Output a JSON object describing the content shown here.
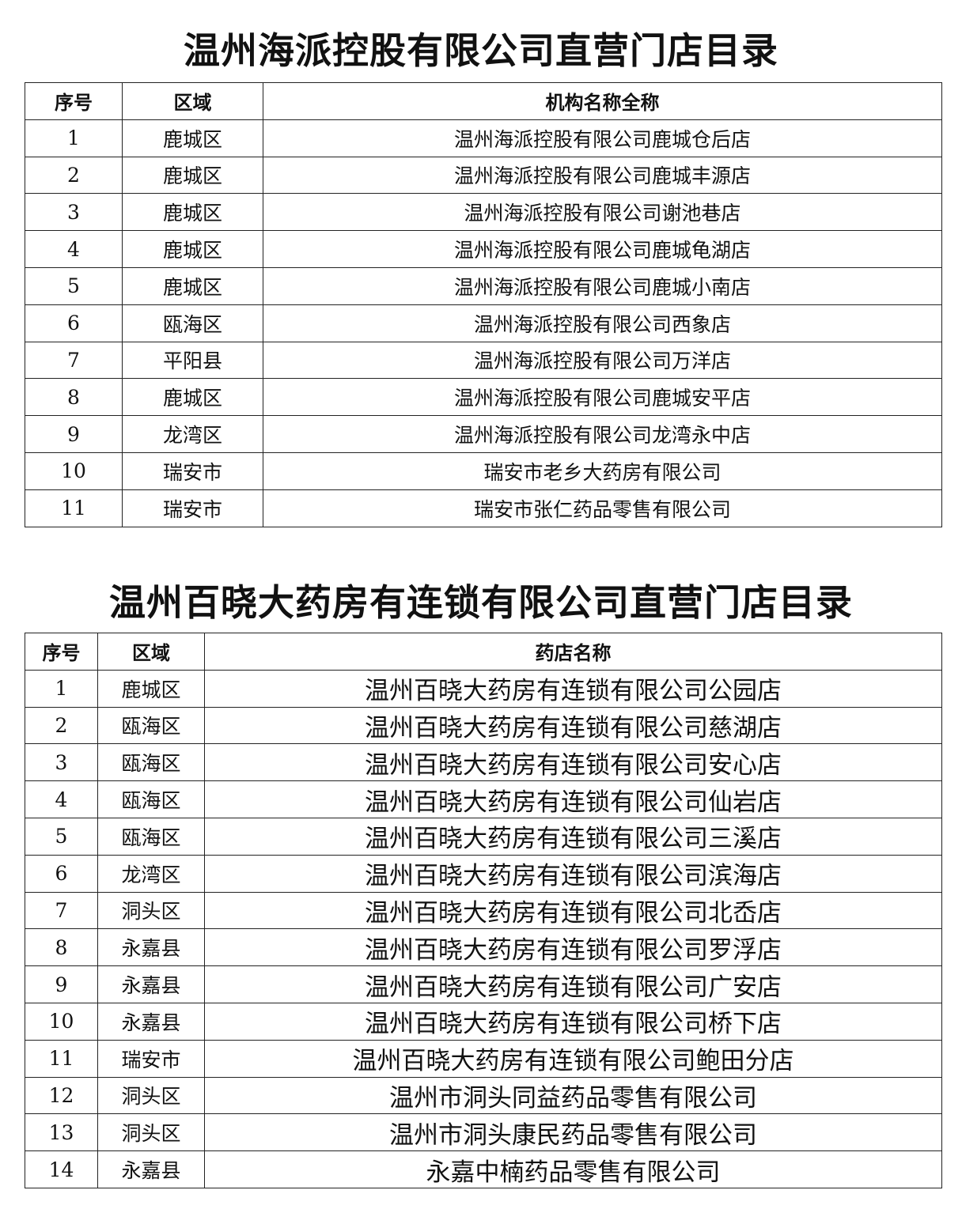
{
  "table1": {
    "title": "温州海派控股有限公司直营门店目录",
    "headers": [
      "序号",
      "区域",
      "机构名称全称"
    ],
    "rows": [
      {
        "no": "1",
        "area": "鹿城区",
        "name": "温州海派控股有限公司鹿城仓后店"
      },
      {
        "no": "2",
        "area": "鹿城区",
        "name": "温州海派控股有限公司鹿城丰源店"
      },
      {
        "no": "3",
        "area": "鹿城区",
        "name": "温州海派控股有限公司谢池巷店"
      },
      {
        "no": "4",
        "area": "鹿城区",
        "name": "温州海派控股有限公司鹿城龟湖店"
      },
      {
        "no": "5",
        "area": "鹿城区",
        "name": "温州海派控股有限公司鹿城小南店"
      },
      {
        "no": "6",
        "area": "瓯海区",
        "name": "温州海派控股有限公司西象店"
      },
      {
        "no": "7",
        "area": "平阳县",
        "name": "温州海派控股有限公司万洋店"
      },
      {
        "no": "8",
        "area": "鹿城区",
        "name": "温州海派控股有限公司鹿城安平店"
      },
      {
        "no": "9",
        "area": "龙湾区",
        "name": "温州海派控股有限公司龙湾永中店"
      },
      {
        "no": "10",
        "area": "瑞安市",
        "name": "瑞安市老乡大药房有限公司"
      },
      {
        "no": "11",
        "area": "瑞安市",
        "name": "瑞安市张仁药品零售有限公司"
      }
    ]
  },
  "table2": {
    "title": "温州百晓大药房有连锁有限公司直营门店目录",
    "headers": [
      "序号",
      "区域",
      "药店名称"
    ],
    "rows": [
      {
        "no": "1",
        "area": "鹿城区",
        "name": "温州百晓大药房有连锁有限公司公园店"
      },
      {
        "no": "2",
        "area": "瓯海区",
        "name": "温州百晓大药房有连锁有限公司慈湖店"
      },
      {
        "no": "3",
        "area": "瓯海区",
        "name": "温州百晓大药房有连锁有限公司安心店"
      },
      {
        "no": "4",
        "area": "瓯海区",
        "name": "温州百晓大药房有连锁有限公司仙岩店"
      },
      {
        "no": "5",
        "area": "瓯海区",
        "name": "温州百晓大药房有连锁有限公司三溪店"
      },
      {
        "no": "6",
        "area": "龙湾区",
        "name": "温州百晓大药房有连锁有限公司滨海店"
      },
      {
        "no": "7",
        "area": "洞头区",
        "name": "温州百晓大药房有连锁有限公司北岙店"
      },
      {
        "no": "8",
        "area": "永嘉县",
        "name": "温州百晓大药房有连锁有限公司罗浮店"
      },
      {
        "no": "9",
        "area": "永嘉县",
        "name": "温州百晓大药房有连锁有限公司广安店"
      },
      {
        "no": "10",
        "area": "永嘉县",
        "name": "温州百晓大药房有连锁有限公司桥下店"
      },
      {
        "no": "11",
        "area": "瑞安市",
        "name": "温州百晓大药房有连锁有限公司鲍田分店"
      },
      {
        "no": "12",
        "area": "洞头区",
        "name": "温州市洞头同益药品零售有限公司"
      },
      {
        "no": "13",
        "area": "洞头区",
        "name": "温州市洞头康民药品零售有限公司"
      },
      {
        "no": "14",
        "area": "永嘉县",
        "name": "永嘉中楠药品零售有限公司"
      }
    ]
  }
}
